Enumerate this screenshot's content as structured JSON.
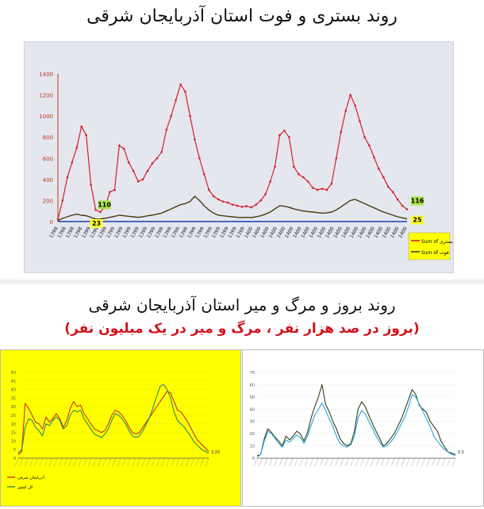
{
  "page": {
    "title_top": "روند بستری و فوت استان آذربایجان شرقی",
    "title_bottom": "روند بروز و مرگ و میر استان آذربایجان شرقی",
    "subtitle_bottom": "(بروز در صد هزار نفر ، مرگ و میر در یک میلیون نفر)"
  },
  "colors": {
    "hosp": "#d61f2a",
    "death": "#4a3a12",
    "axis_blue": "#1f3fa8",
    "callout_green": "#a7e34a",
    "callout_yellow": "#ffff33",
    "legend_bg": "#ffff00",
    "chart2_red": "#c0392b",
    "chart2_green": "#2e8b57",
    "chart3_dark": "#3a3a1a",
    "chart3_blue": "#2aa8e0"
  },
  "chart_data": [
    {
      "type": "line",
      "ylim": [
        0,
        1400
      ],
      "yticks": [
        0,
        200,
        400,
        600,
        800,
        1000,
        1200,
        1400
      ],
      "legend_position": "right",
      "series": [
        {
          "name": "Sum of بستری",
          "color_key": "hosp",
          "values": [
            20,
            200,
            420,
            560,
            700,
            900,
            820,
            350,
            110,
            90,
            140,
            280,
            300,
            720,
            690,
            560,
            480,
            380,
            400,
            480,
            550,
            600,
            660,
            870,
            1000,
            1150,
            1300,
            1230,
            1000,
            780,
            600,
            450,
            300,
            240,
            210,
            190,
            180,
            160,
            150,
            140,
            145,
            135,
            160,
            200,
            260,
            380,
            520,
            820,
            860,
            800,
            520,
            450,
            420,
            380,
            320,
            300,
            310,
            300,
            360,
            600,
            850,
            1050,
            1200,
            1100,
            950,
            800,
            720,
            610,
            500,
            420,
            330,
            280,
            210,
            150,
            116
          ]
        },
        {
          "name": "Sum of فوت",
          "color_key": "death",
          "values": [
            10,
            30,
            45,
            60,
            70,
            60,
            55,
            40,
            23,
            25,
            30,
            40,
            50,
            60,
            55,
            50,
            45,
            40,
            45,
            55,
            60,
            70,
            80,
            100,
            120,
            140,
            160,
            170,
            190,
            240,
            200,
            150,
            110,
            80,
            60,
            55,
            50,
            45,
            40,
            38,
            40,
            38,
            45,
            55,
            70,
            90,
            120,
            150,
            145,
            135,
            120,
            110,
            100,
            95,
            90,
            85,
            80,
            82,
            90,
            110,
            140,
            170,
            200,
            210,
            190,
            170,
            150,
            130,
            110,
            90,
            75,
            60,
            45,
            35,
            25
          ]
        }
      ],
      "annotations": [
        "110",
        "23",
        "116",
        "25"
      ],
      "x_tick_labels": [
        "1398",
        "1399",
        "1399",
        "1399",
        "1399",
        "1399",
        "1400",
        "1400",
        "1400",
        "1400",
        "1400"
      ]
    },
    {
      "type": "line",
      "ylim": [
        0,
        50
      ],
      "yticks": [
        0,
        5,
        10,
        15,
        20,
        25,
        30,
        35,
        40,
        45,
        50
      ],
      "series": [
        {
          "name": "آذربایجان شرقی",
          "color_key": "chart2_red",
          "values": [
            2,
            4,
            32,
            29,
            25,
            21,
            20,
            17,
            24,
            21,
            23,
            26,
            23,
            18,
            22,
            29,
            33,
            30,
            31,
            26,
            23,
            20,
            17,
            16,
            15,
            16,
            20,
            25,
            28,
            27,
            25,
            22,
            18,
            15,
            14,
            15,
            18,
            21,
            24,
            27,
            30,
            33,
            36,
            39,
            38,
            33,
            28,
            27,
            24,
            21,
            17,
            13,
            10,
            8,
            6,
            4
          ]
        },
        {
          "name": "کل کشور",
          "color_key": "chart2_green",
          "values": [
            3,
            5,
            18,
            23,
            22,
            18,
            16,
            13,
            20,
            19,
            22,
            24,
            22,
            17,
            19,
            25,
            28,
            27,
            28,
            23,
            20,
            17,
            14,
            13,
            12,
            14,
            17,
            22,
            26,
            25,
            23,
            20,
            16,
            13,
            12,
            13,
            16,
            20,
            24,
            30,
            36,
            42,
            43,
            40,
            35,
            27,
            22,
            20,
            18,
            15,
            12,
            9,
            7,
            5,
            4,
            3
          ]
        }
      ],
      "end_label": "3.25"
    },
    {
      "type": "line",
      "ylim": [
        0,
        70
      ],
      "yticks": [
        0,
        10,
        20,
        30,
        40,
        50,
        60,
        70
      ],
      "series": [
        {
          "name": "",
          "color_key": "chart3_dark",
          "values": [
            2,
            3,
            16,
            24,
            21,
            17,
            14,
            10,
            18,
            15,
            18,
            22,
            20,
            14,
            21,
            33,
            42,
            50,
            60,
            44,
            38,
            30,
            24,
            16,
            12,
            10,
            12,
            22,
            40,
            46,
            42,
            35,
            28,
            22,
            16,
            10,
            12,
            16,
            20,
            26,
            32,
            40,
            48,
            56,
            52,
            43,
            40,
            37,
            30,
            26,
            22,
            14,
            9,
            5,
            4,
            3
          ]
        },
        {
          "name": "",
          "color_key": "chart3_blue",
          "values": [
            1,
            3,
            14,
            22,
            20,
            16,
            12,
            9,
            15,
            13,
            16,
            19,
            17,
            12,
            18,
            27,
            35,
            40,
            45,
            39,
            32,
            26,
            18,
            12,
            10,
            9,
            11,
            18,
            33,
            39,
            36,
            30,
            24,
            18,
            13,
            9,
            10,
            13,
            17,
            22,
            28,
            34,
            42,
            52,
            50,
            44,
            38,
            32,
            26,
            18,
            14,
            10,
            7,
            5,
            3,
            2
          ]
        }
      ],
      "end_label": "0.5"
    }
  ]
}
